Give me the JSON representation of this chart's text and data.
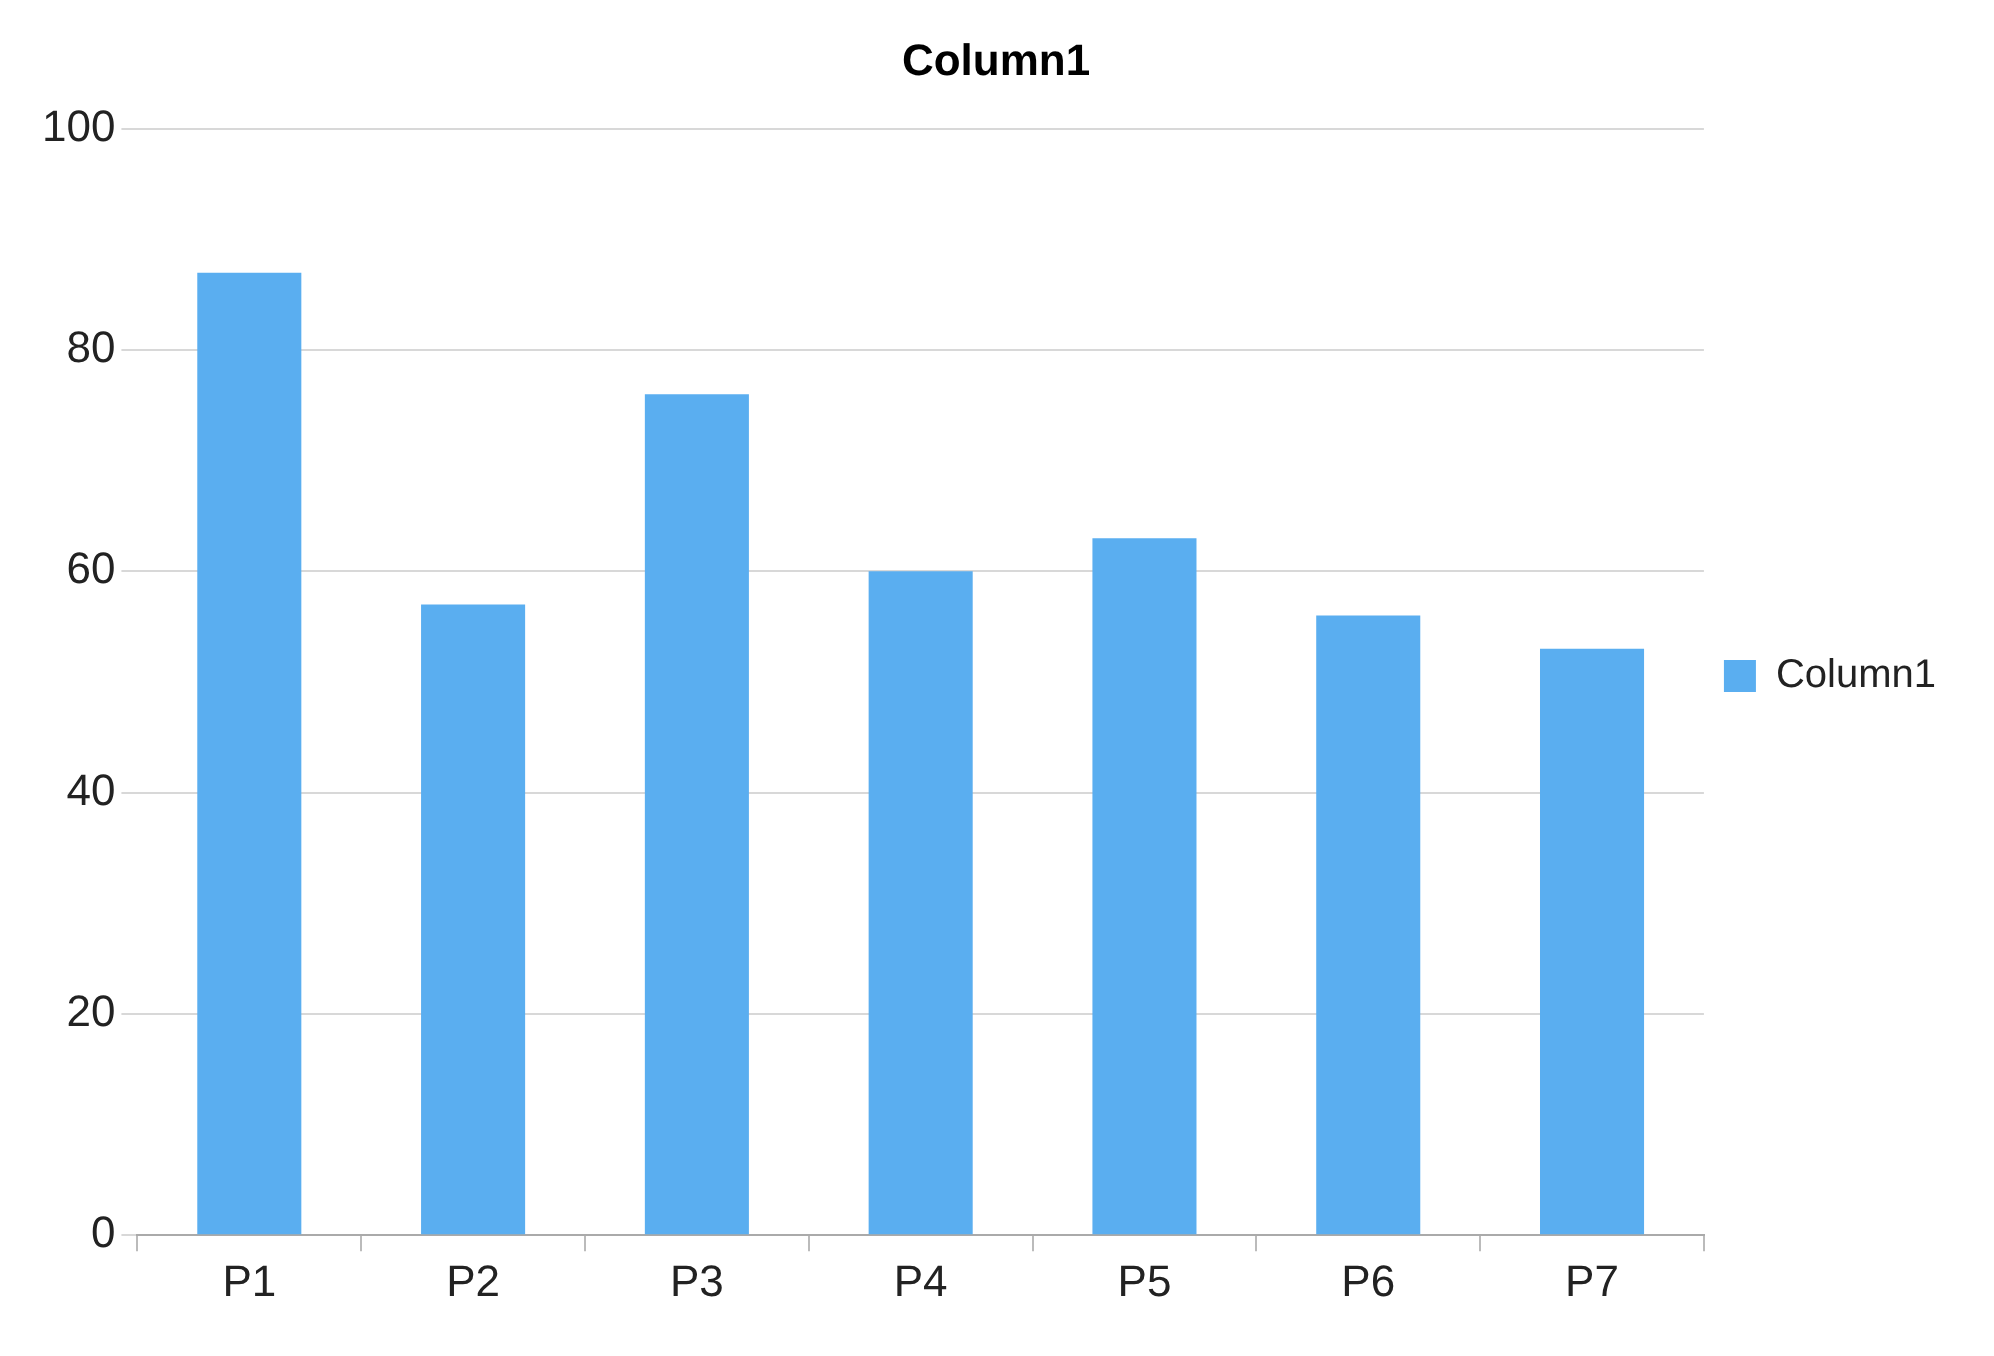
{
  "chart_data": {
    "type": "bar",
    "title": "Column1",
    "categories": [
      "P1",
      "P2",
      "P3",
      "P4",
      "P5",
      "P6",
      "P7"
    ],
    "series": [
      {
        "name": "Column1",
        "color": "#5aaef0",
        "values": [
          87,
          57,
          76,
          60,
          63,
          56,
          53
        ]
      }
    ],
    "ylim": [
      0,
      100
    ],
    "yticks": [
      0,
      20,
      40,
      60,
      80,
      100
    ],
    "grid": "y",
    "legend": "right"
  }
}
